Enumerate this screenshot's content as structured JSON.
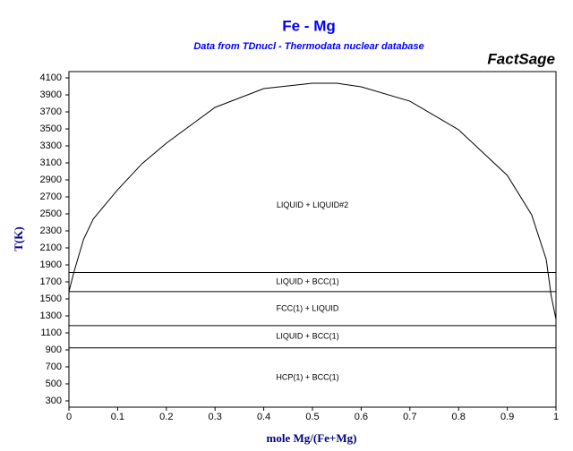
{
  "chart_data": {
    "type": "phase-diagram",
    "title": "Fe - Mg",
    "subtitle": "Data from TDnucl - Thermodata nuclear database",
    "brand": "FactSage",
    "x_label": "mole Mg/(Fe+Mg)",
    "y_label": "T(K)",
    "xlim": [
      0,
      1
    ],
    "ylim": [
      226,
      4174
    ],
    "xticks": [
      0,
      0.1,
      0.2,
      0.3,
      0.4,
      0.5,
      0.6,
      0.7,
      0.8,
      0.9,
      1
    ],
    "yticks": [
      300,
      500,
      700,
      900,
      1100,
      1300,
      1500,
      1700,
      1900,
      2100,
      2300,
      2500,
      2700,
      2900,
      3100,
      3300,
      3500,
      3700,
      3900,
      4100
    ],
    "color": "#000000",
    "isotherms": [
      1811,
      1585,
      1185,
      923
    ],
    "series": [
      {
        "name": "LIQUID + LIQUID#2",
        "x": [
          0,
          0.01,
          0.03,
          0.05,
          0.1,
          0.15,
          0.2,
          0.3,
          0.4,
          0.5,
          0.55,
          0.6,
          0.7,
          0.8,
          0.9,
          0.95,
          0.98,
          0.99,
          1
        ],
        "values": [
          1585,
          1811,
          2200,
          2440,
          2784,
          3090,
          3332,
          3753,
          3974,
          4037,
          4037,
          3995,
          3826,
          3490,
          2953,
          2490,
          1963,
          1540,
          1260
        ]
      }
    ],
    "annotations": [
      "LIQUID + BCC(1)",
      "FCC(1) + LIQUID",
      "LIQUID + BCC(1)",
      "HCP(1) + BCC(1)"
    ]
  }
}
